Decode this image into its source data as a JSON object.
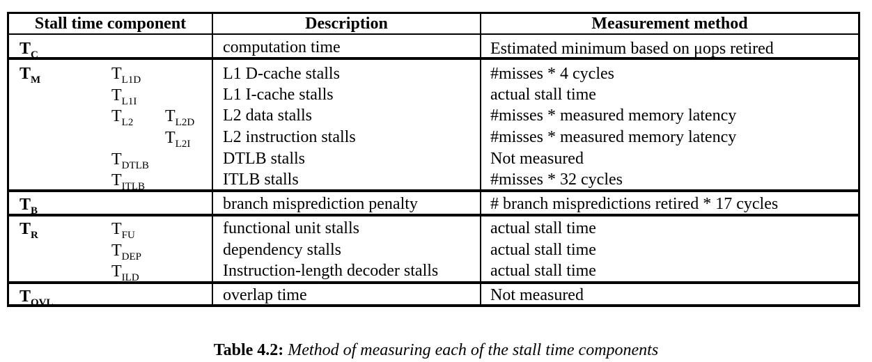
{
  "headers": [
    "Stall time component",
    "Description",
    "Measurement method"
  ],
  "groups": [
    {
      "symbol": "T",
      "sub": "C",
      "rows": [
        {
          "description": "computation time",
          "method": "Estimated minimum based on μops retired"
        }
      ]
    },
    {
      "symbol": "T",
      "sub": "M",
      "rows": [
        {
          "c1": "T",
          "c1sub": "L1D",
          "description": "L1 D-cache stalls",
          "method": "#misses * 4 cycles"
        },
        {
          "c1": "T",
          "c1sub": "L1I",
          "description": "L1 I-cache stalls",
          "method": "actual stall time"
        },
        {
          "c1": "T",
          "c1sub": "L2",
          "c2": "T",
          "c2sub": "L2D",
          "description": "L2 data stalls",
          "method": "#misses * measured memory latency"
        },
        {
          "c2": "T",
          "c2sub": "L2I",
          "description": "L2 instruction stalls",
          "method": "#misses * measured memory latency"
        },
        {
          "c1": "T",
          "c1sub": "DTLB",
          "description": "DTLB stalls",
          "method": "Not measured"
        },
        {
          "c1": "T",
          "c1sub": "ITLB",
          "description": "ITLB stalls",
          "method": "#misses * 32 cycles"
        }
      ]
    },
    {
      "symbol": "T",
      "sub": "B",
      "rows": [
        {
          "description": "branch misprediction penalty",
          "method": "# branch mispredictions retired * 17 cycles"
        }
      ]
    },
    {
      "symbol": "T",
      "sub": "R",
      "rows": [
        {
          "c1": "T",
          "c1sub": "FU",
          "description": "functional unit stalls",
          "method": "actual stall time"
        },
        {
          "c1": "T",
          "c1sub": "DEP",
          "description": "dependency stalls",
          "method": "actual stall time"
        },
        {
          "c1": "T",
          "c1sub": "ILD",
          "description": "Instruction-length decoder stalls",
          "method": "actual stall time"
        }
      ]
    },
    {
      "symbol": "T",
      "sub": "OVL",
      "rows": [
        {
          "description": "overlap time",
          "method": "Not measured"
        }
      ]
    }
  ],
  "caption": {
    "label": "Table 4.2:",
    "text": "Method of measuring each of the stall time components"
  }
}
